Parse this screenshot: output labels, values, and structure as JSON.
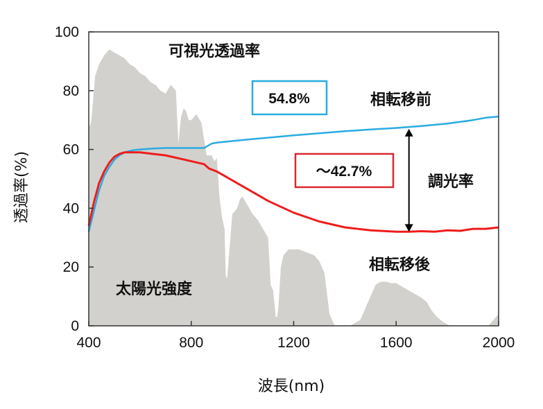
{
  "chart_data": {
    "type": "line",
    "xlabel": "波長(nm)",
    "ylabel": "透過率(%)",
    "xlim": [
      400,
      2000
    ],
    "ylim": [
      0,
      100
    ],
    "x_ticks": [
      "400",
      "800",
      "1200",
      "1600",
      "2000"
    ],
    "y_ticks": [
      "0",
      "20",
      "40",
      "60",
      "80",
      "100"
    ],
    "grid": false,
    "series": [
      {
        "name": "相転移前",
        "color": "#29abe2",
        "x": [
          400,
          420,
          440,
          460,
          480,
          500,
          520,
          540,
          560,
          580,
          600,
          650,
          700,
          750,
          800,
          850,
          860,
          880,
          900,
          1000,
          1100,
          1200,
          1300,
          1400,
          1500,
          1600,
          1700,
          1800,
          1900,
          1950,
          2000
        ],
        "y": [
          32,
          39,
          46,
          51,
          54,
          56.5,
          58,
          59,
          59.5,
          59.8,
          60,
          60.3,
          60.5,
          60.5,
          60.5,
          60.5,
          61,
          62,
          62.3,
          63.2,
          64,
          64.8,
          65.5,
          66.2,
          66.8,
          67.3,
          68,
          68.8,
          70,
          70.8,
          71.2
        ]
      },
      {
        "name": "相転移後",
        "color": "#ee1c1c",
        "x": [
          400,
          420,
          440,
          460,
          480,
          500,
          520,
          540,
          560,
          580,
          600,
          650,
          700,
          750,
          800,
          850,
          870,
          900,
          950,
          1000,
          1100,
          1200,
          1300,
          1400,
          1500,
          1600,
          1650,
          1700,
          1750,
          1800,
          1850,
          1900,
          1950,
          2000
        ],
        "y": [
          34,
          42,
          48.5,
          52.5,
          55.5,
          57.5,
          58.5,
          59,
          59,
          59,
          59,
          58.5,
          58,
          57,
          56,
          55,
          53.5,
          52.5,
          50,
          47.5,
          42.5,
          38.5,
          35.5,
          33.5,
          32.5,
          32,
          32,
          32.2,
          32,
          32.5,
          32.3,
          33,
          33,
          33.5
        ]
      },
      {
        "name": "太陽光強度",
        "color": "#d3d1cd",
        "type": "area",
        "x": [
          400,
          405,
          410,
          425,
          440,
          460,
          480,
          500,
          520,
          540,
          560,
          580,
          600,
          620,
          640,
          660,
          680,
          700,
          720,
          740,
          750,
          760,
          770,
          780,
          790,
          800,
          820,
          840,
          860,
          880,
          890,
          900,
          910,
          920,
          930,
          935,
          940,
          960,
          980,
          990,
          1000,
          1020,
          1040,
          1060,
          1080,
          1100,
          1110,
          1120,
          1130,
          1135,
          1140,
          1150,
          1160,
          1180,
          1200,
          1220,
          1250,
          1280,
          1300,
          1320,
          1340,
          1350,
          1360,
          1400,
          1420,
          1440,
          1460,
          1480,
          1500,
          1520,
          1540,
          1560,
          1580,
          1600,
          1620,
          1640,
          1660,
          1680,
          1700,
          1720,
          1740,
          1760,
          1780,
          1800,
          1810,
          1820,
          1960,
          1980,
          1990,
          2000
        ],
        "y": [
          68,
          68,
          70,
          85,
          89,
          92,
          94,
          93,
          92,
          91,
          89,
          88,
          86,
          85,
          83,
          82,
          80,
          79,
          82,
          80,
          62,
          71,
          74,
          73,
          70,
          70,
          72,
          69,
          58,
          58,
          56,
          57,
          44,
          37,
          33,
          17,
          16,
          38,
          40,
          43,
          44,
          41,
          38,
          36,
          33,
          30,
          14,
          12,
          3,
          3,
          6,
          20,
          24,
          26,
          26,
          26,
          25,
          24,
          22,
          18,
          4,
          2,
          0,
          0,
          0,
          1,
          2,
          6,
          10,
          14,
          15,
          15,
          14.5,
          14.5,
          13.5,
          12.5,
          11.5,
          10.5,
          9.5,
          8,
          5,
          3,
          1.5,
          0.5,
          0,
          0,
          0,
          2,
          3,
          4
        ]
      }
    ],
    "annotations": {
      "visible_title": "可視光透過率",
      "value_before": "54.8%",
      "value_after": "〜42.7%",
      "label_before": "相転移前",
      "label_after": "相転移後",
      "label_modulation": "調光率",
      "label_solar": "太陽光強度",
      "color_before_box": "#29abe2",
      "color_after_box": "#d7282f"
    },
    "modulation_arrow": {
      "x": 1650,
      "y_top": 67,
      "y_bottom": 32
    }
  }
}
